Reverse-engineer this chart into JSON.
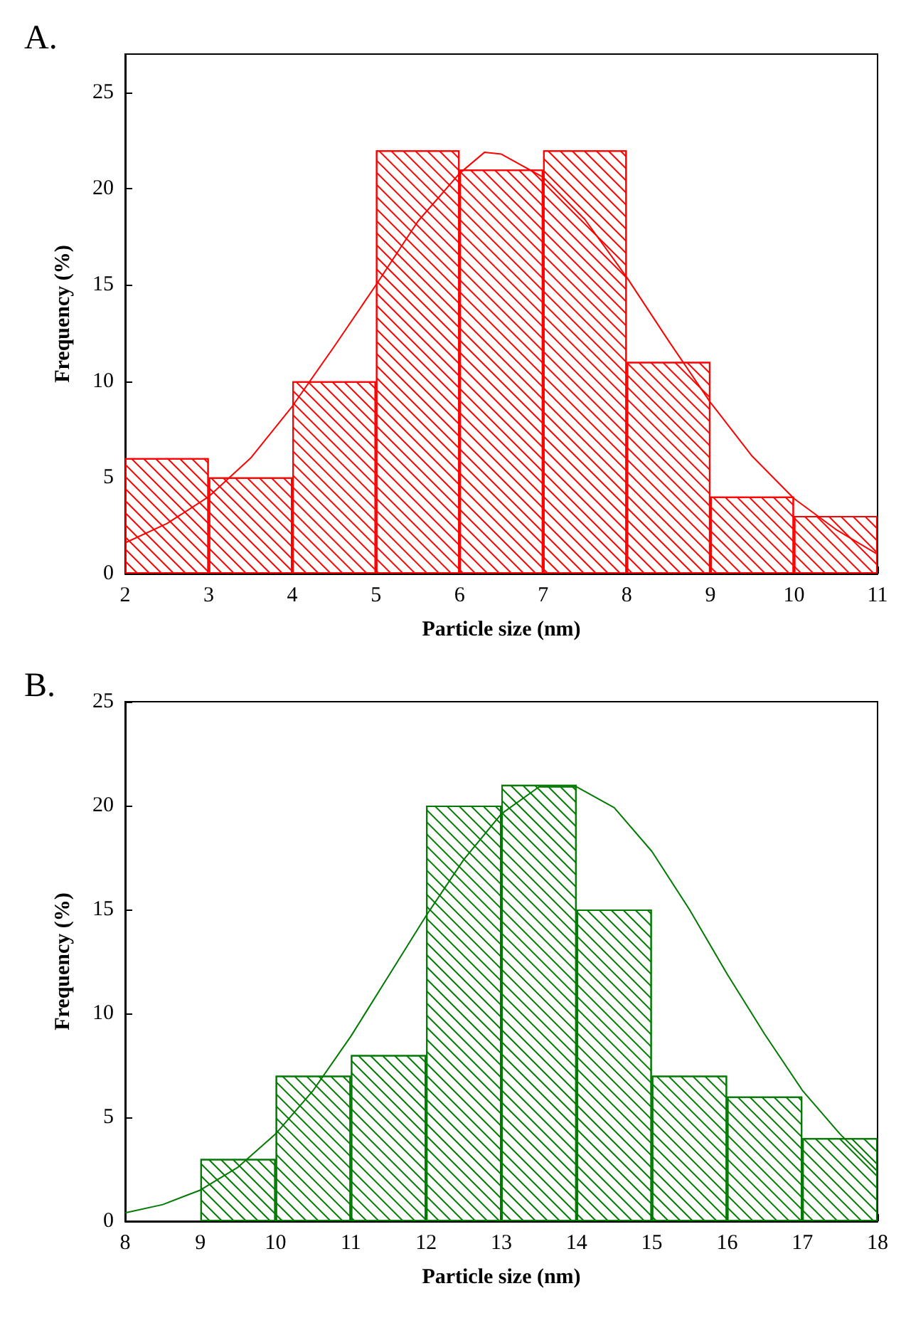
{
  "chart_data": [
    {
      "type": "histogram",
      "title": "A.",
      "xlabel": "Particle size (nm)",
      "ylabel": "Frequency (%)",
      "xlim": [
        2,
        11
      ],
      "xticks": [
        2,
        3,
        4,
        5,
        6,
        7,
        8,
        9,
        10,
        11
      ],
      "ylim": [
        0,
        27
      ],
      "yticks": [
        0,
        5,
        10,
        15,
        20,
        25
      ],
      "grid": false,
      "series": [
        {
          "type": "histogram",
          "color": "#ff0000",
          "bins": [
            2,
            3,
            4,
            5,
            6,
            7,
            8,
            9,
            10,
            11
          ],
          "values": [
            6,
            5,
            10,
            22,
            21,
            22,
            11,
            4,
            3
          ]
        },
        {
          "type": "line",
          "color": "#ff0000",
          "x": [
            2,
            2.5,
            3,
            3.5,
            4,
            4.5,
            5,
            5.5,
            6,
            6.3,
            6.5,
            7,
            7.5,
            8,
            8.5,
            9,
            9.5,
            10,
            10.5,
            11
          ],
          "values": [
            1.6,
            2.6,
            4.0,
            6.0,
            8.7,
            11.8,
            15.0,
            18.3,
            20.8,
            21.9,
            21.8,
            20.6,
            18.4,
            15.4,
            12.1,
            8.9,
            6.1,
            3.9,
            2.3,
            1.0
          ]
        }
      ]
    },
    {
      "type": "histogram",
      "title": "B.",
      "xlabel": "Particle size (nm)",
      "ylabel": "Frequency (%)",
      "xlim": [
        8,
        18
      ],
      "xticks": [
        8,
        9,
        10,
        11,
        12,
        13,
        14,
        15,
        16,
        17,
        18
      ],
      "ylim": [
        0,
        25
      ],
      "yticks": [
        0,
        5,
        10,
        15,
        20,
        25
      ],
      "grid": false,
      "series": [
        {
          "type": "histogram",
          "color": "#007a00",
          "bins": [
            9,
            10,
            11,
            12,
            13,
            14,
            15,
            16,
            17,
            18
          ],
          "values": [
            3,
            7,
            8,
            20,
            21,
            15,
            7,
            6,
            4
          ]
        },
        {
          "type": "line",
          "color": "#007a00",
          "x": [
            8,
            8.5,
            9,
            9.5,
            10,
            10.5,
            11,
            11.5,
            12,
            12.5,
            13,
            13.5,
            14,
            14.5,
            15,
            15.5,
            16,
            16.5,
            17,
            17.5,
            18
          ],
          "values": [
            0.4,
            0.8,
            1.5,
            2.6,
            4.2,
            6.3,
            8.9,
            11.8,
            14.7,
            17.4,
            19.6,
            20.9,
            20.9,
            19.9,
            17.8,
            15.0,
            11.9,
            9.0,
            6.3,
            4.2,
            2.4
          ]
        }
      ]
    }
  ]
}
